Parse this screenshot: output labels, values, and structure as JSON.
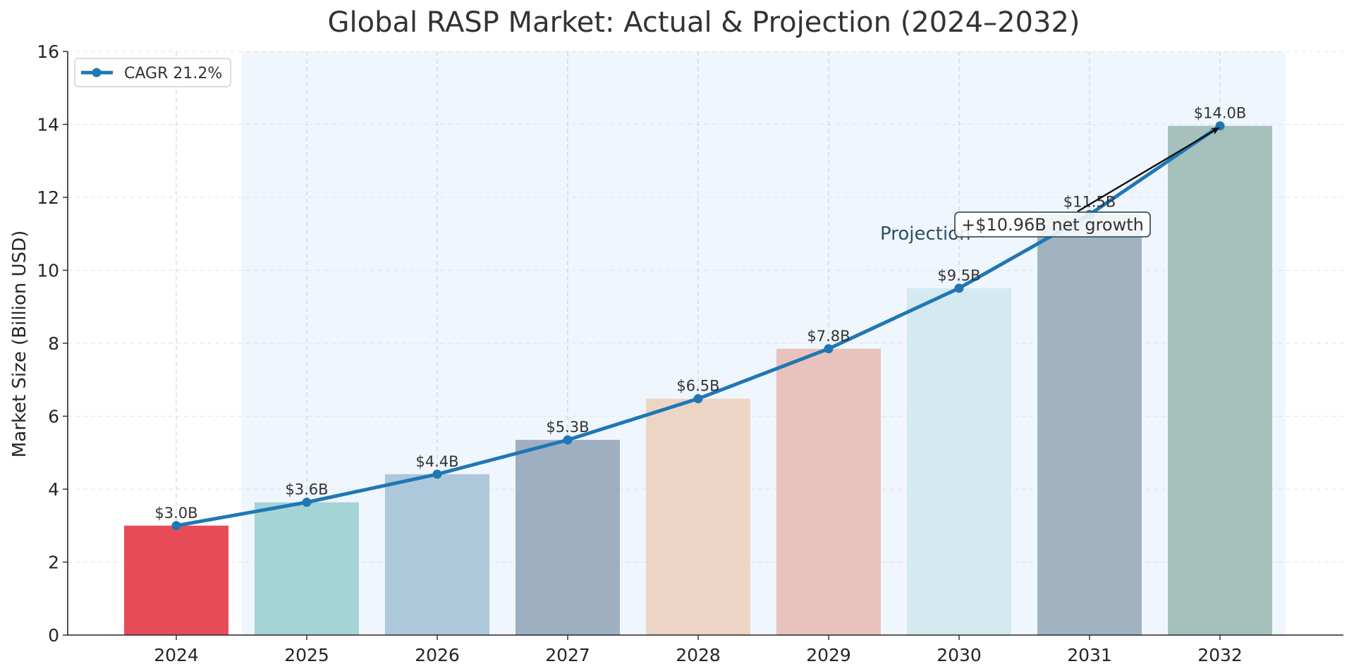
{
  "chart_data": {
    "type": "bar",
    "title": "Global RASP Market: Actual & Projection (2024–2032)",
    "xlabel": "",
    "ylabel": "Market Size (Billion USD)",
    "ylim": [
      0,
      16
    ],
    "yticks": [
      0,
      2,
      4,
      6,
      8,
      10,
      12,
      14,
      16
    ],
    "grid": true,
    "categories": [
      "2024",
      "2025",
      "2026",
      "2027",
      "2028",
      "2029",
      "2030",
      "2031",
      "2032"
    ],
    "values": [
      3.0,
      3.64,
      4.41,
      5.35,
      6.48,
      7.85,
      9.51,
      11.53,
      13.96
    ],
    "bar_colors": [
      "#e84b58",
      "#a4d4d6",
      "#adc8da",
      "#9eafc1",
      "#ecd5c5",
      "#e8c2bd",
      "#d3eaf0",
      "#a1b3c1",
      "#a6c0bc"
    ],
    "data_labels": [
      "$3.0B",
      "$3.6B",
      "$4.4B",
      "$5.3B",
      "$6.5B",
      "$7.8B",
      "$9.5B",
      "$11.5B",
      "$14.0B"
    ],
    "series": [
      {
        "name": "CAGR 21.2%",
        "type": "line",
        "color": "#1f77b4",
        "values": [
          3.0,
          3.64,
          4.41,
          5.35,
          6.48,
          7.85,
          9.51,
          11.53,
          13.96
        ]
      }
    ],
    "legend": {
      "position": "top-left",
      "entries": [
        "CAGR 21.2%"
      ]
    },
    "projection_region": {
      "label": "Projection",
      "from": "2025",
      "to": "2032",
      "color": "#f0f6fe"
    },
    "annotation": {
      "text": "+$10.96B net growth",
      "arrow_to_category": "2032",
      "arrow_to_value": 13.96
    }
  }
}
